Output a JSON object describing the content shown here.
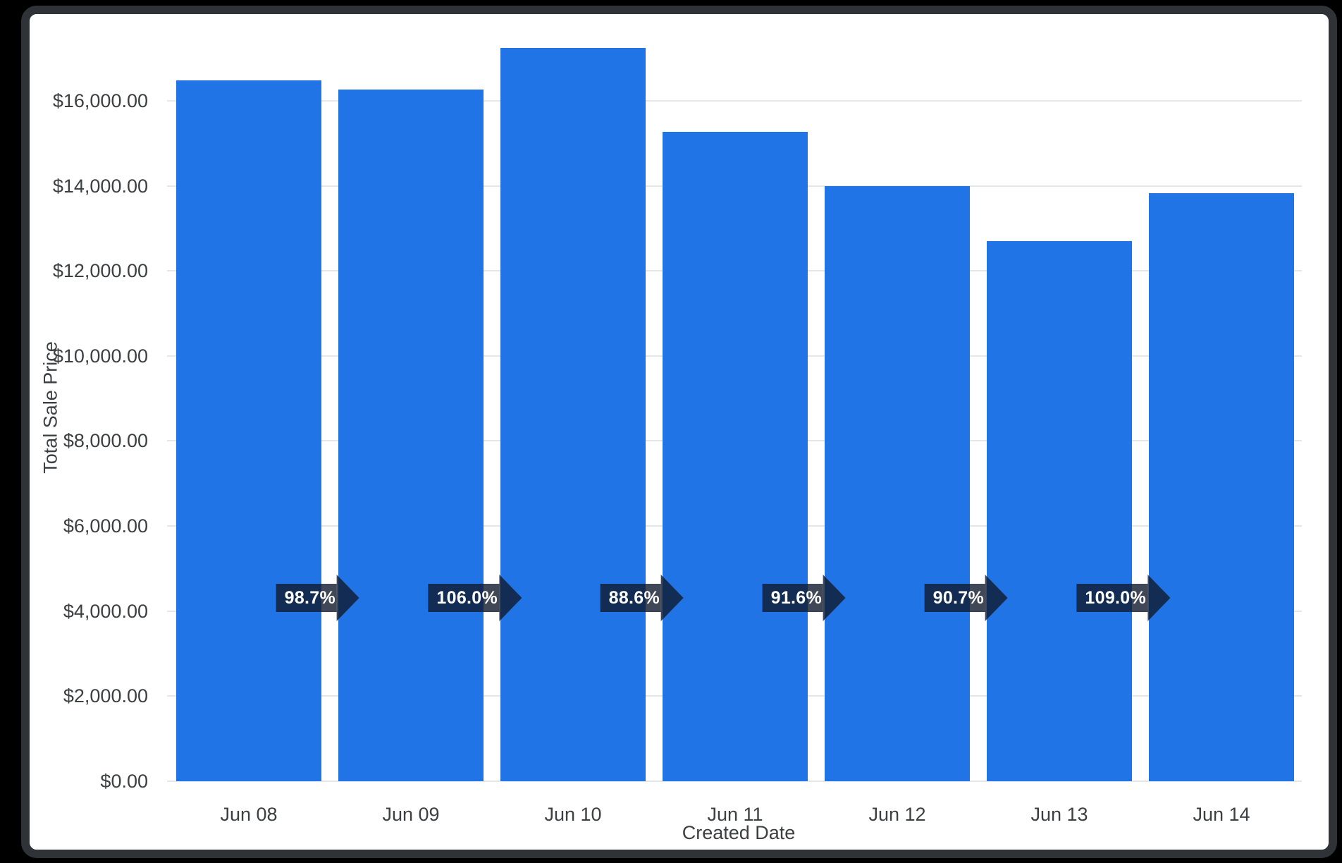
{
  "chart_data": {
    "type": "bar",
    "title": "",
    "categories": [
      "Jun 08",
      "Jun 09",
      "Jun 10",
      "Jun 11",
      "Jun 12",
      "Jun 13",
      "Jun 14"
    ],
    "values": [
      16480,
      16266,
      17242,
      15277,
      13994,
      12692,
      13834
    ],
    "period_over_period_badges": [
      "98.7%",
      "106.0%",
      "88.6%",
      "91.6%",
      "90.7%",
      "109.0%"
    ],
    "xlabel": "Created Date",
    "ylabel": "Total Sale Price",
    "ylim": [
      0,
      17243
    ],
    "ytick_values": [
      0,
      2000,
      4000,
      6000,
      8000,
      10000,
      12000,
      14000,
      16000
    ],
    "ytick_labels": [
      "$0.00",
      "$2,000.00",
      "$4,000.00",
      "$6,000.00",
      "$8,000.00",
      "$10,000.00",
      "$12,000.00",
      "$14,000.00",
      "$16,000.00"
    ],
    "grid": true,
    "legend": "none",
    "bar_color": "#2074e6",
    "badge_color": "rgba(16,26,46,0.8)",
    "grid_color": "#e4e6e8",
    "axis_text_color": "#3c4043"
  }
}
